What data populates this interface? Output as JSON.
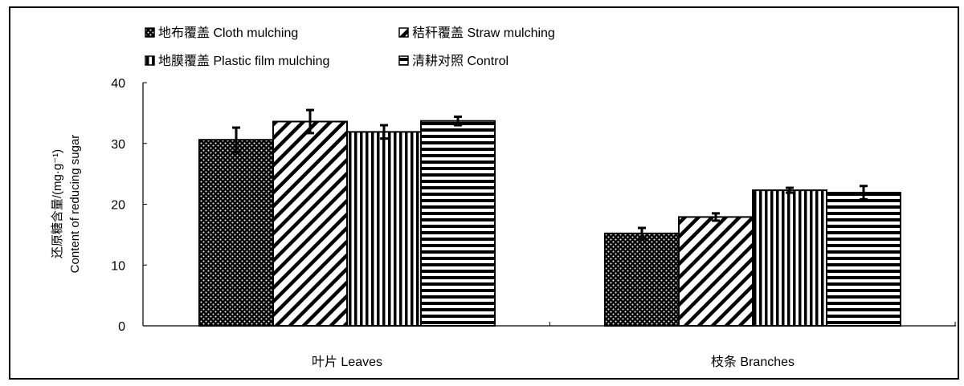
{
  "chart_data": {
    "type": "bar",
    "categories": [
      "叶片 Leaves",
      "枝条 Branches"
    ],
    "series": [
      {
        "name": "地布覆盖 Cloth  mulching",
        "pattern": "dots",
        "values": [
          30.6,
          15.2
        ],
        "errors": [
          2.0,
          0.9
        ]
      },
      {
        "name": "秸秆覆盖 Straw mulching",
        "pattern": "diagonal",
        "values": [
          33.6,
          17.9
        ],
        "errors": [
          1.9,
          0.6
        ]
      },
      {
        "name": "地膜覆盖 Plastic film mulching",
        "pattern": "vertical",
        "values": [
          31.9,
          22.3
        ],
        "errors": [
          1.1,
          0.4
        ]
      },
      {
        "name": "清耕对照 Control",
        "pattern": "horizontal",
        "values": [
          33.7,
          21.9
        ],
        "errors": [
          0.7,
          1.1
        ]
      }
    ],
    "ylabel": [
      "还原糖含量/(mg·g⁻¹)",
      "Content of reducing sugar"
    ],
    "xlabel": "",
    "ylim": [
      0,
      40
    ],
    "yticks": [
      0,
      10,
      20,
      30,
      40
    ],
    "grid": false,
    "legend_position": "top-left",
    "colors": {
      "bar_fill": "#000000",
      "bar_background": "#ffffff"
    }
  }
}
